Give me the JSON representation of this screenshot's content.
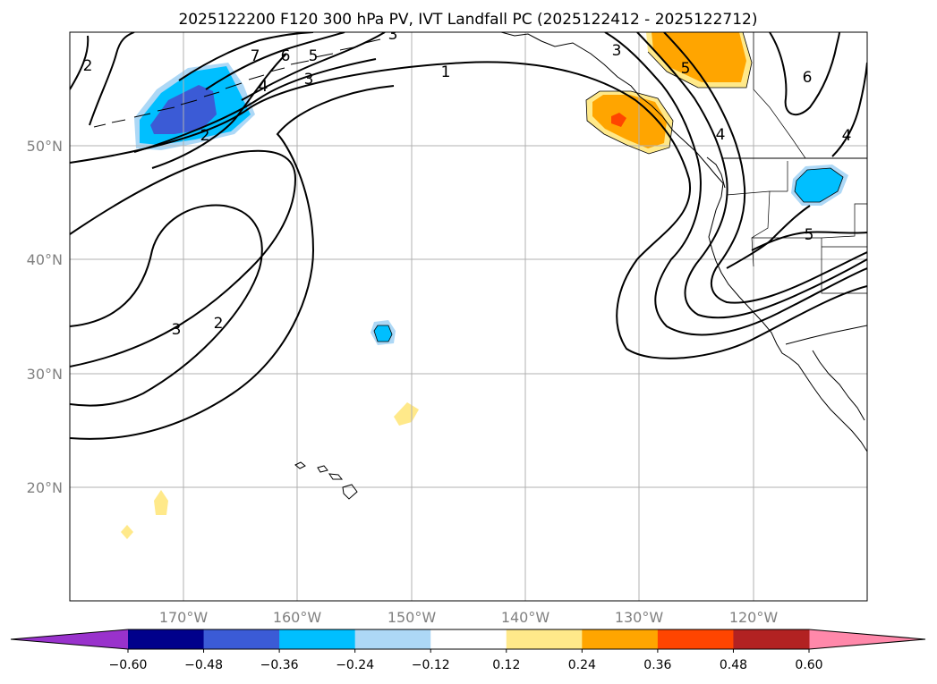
{
  "title": "2025122200 F120 300 hPa PV, IVT Landfall PC (2025122412 - 2025122712)",
  "map": {
    "region": "North Pacific and western North America",
    "lon_range": [
      -180,
      -110
    ],
    "lat_range": [
      10,
      60
    ],
    "gridline_lons": [
      -170,
      -160,
      -150,
      -140,
      -130,
      -120
    ],
    "gridline_lats": [
      20,
      30,
      40,
      50
    ],
    "lat_labels": [
      "50°N",
      "40°N",
      "30°N",
      "20°N"
    ],
    "lon_labels": [
      "170°W",
      "160°W",
      "150°W",
      "140°W",
      "130°W",
      "120°W"
    ],
    "contour_variable": "300 hPa PV",
    "contour_labels": [
      "1",
      "2",
      "3",
      "4",
      "5",
      "6",
      "7",
      "2",
      "3",
      "4",
      "5",
      "6",
      "4",
      "5",
      "3",
      "3",
      "2",
      "4",
      "5"
    ],
    "colors": {
      "gridline": "#b0b0b0",
      "contour": "#000000",
      "coast": "#000000",
      "label_gray": "#808080"
    }
  },
  "colorbar": {
    "ticks": [
      "−0.60",
      "−0.48",
      "−0.36",
      "−0.24",
      "−0.12",
      "0.12",
      "0.24",
      "0.36",
      "0.48",
      "0.60"
    ],
    "bins": [
      {
        "label": "< -0.60",
        "color": "#9932cc"
      },
      {
        "label": "-0.60 to -0.48",
        "color": "#00008b"
      },
      {
        "label": "-0.48 to -0.36",
        "color": "#3b5bd6"
      },
      {
        "label": "-0.36 to -0.24",
        "color": "#00bfff"
      },
      {
        "label": "-0.24 to -0.12",
        "color": "#add8f6"
      },
      {
        "label": "-0.12 to 0.12",
        "color": "#ffffff"
      },
      {
        "label": "0.12 to 0.24",
        "color": "#ffe98a"
      },
      {
        "label": "0.24 to 0.36",
        "color": "#ffa500"
      },
      {
        "label": "0.36 to 0.48",
        "color": "#ff4500"
      },
      {
        "label": "0.48 to 0.60",
        "color": "#b22222"
      },
      {
        "label": "> 0.60",
        "color": "#ff88aa"
      }
    ]
  }
}
